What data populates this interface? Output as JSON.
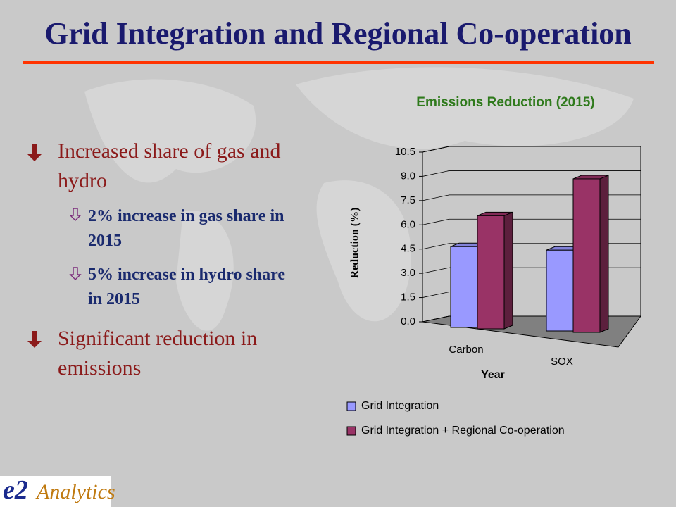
{
  "slide": {
    "title": "Grid Integration and Regional Co-operation",
    "bullets": [
      {
        "text": "Increased share of gas and hydro",
        "sub": [
          "2% increase in gas share in 2015",
          "5% increase in hydro share in 2015"
        ]
      },
      {
        "text": "Significant reduction in emissions"
      }
    ],
    "logo": {
      "mark": "e2",
      "text": "Analytics"
    }
  },
  "chart_data": {
    "type": "bar3d",
    "title": "Emissions Reduction (2015)",
    "x_label": "Year",
    "y_label": "Reduction (%)",
    "categories": [
      "Carbon",
      "SOX"
    ],
    "series": [
      {
        "name": "Grid Integration",
        "color": "#9999ff",
        "values": [
          5.0,
          5.0
        ]
      },
      {
        "name": "Grid Integration + Regional Co-operation",
        "color": "#993366",
        "values": [
          7.0,
          9.5
        ]
      }
    ],
    "ylim": [
      0,
      10.5
    ],
    "yticks": [
      {
        "value": 0,
        "label": "0.0"
      },
      1.5,
      {
        "value": 3,
        "label": "3.0"
      },
      4.5,
      {
        "value": 6,
        "label": "6.0"
      },
      7.5,
      {
        "value": 9,
        "label": "9.0"
      },
      10.5
    ],
    "grid": true,
    "legend": "bottom"
  }
}
